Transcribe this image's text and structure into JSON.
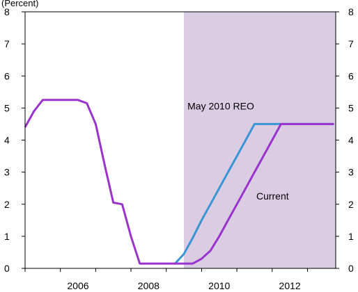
{
  "chart_data": {
    "type": "line",
    "title": "",
    "xlabel": "",
    "ylabel": "",
    "ylim": [
      0,
      8
    ],
    "xlim": [
      2005.0,
      2013.8
    ],
    "y_ticks": [
      0,
      1,
      2,
      3,
      4,
      5,
      6,
      7,
      8
    ],
    "x_tick_labels": [
      {
        "value": 2006,
        "label": "2006"
      },
      {
        "value": 2008,
        "label": "2008"
      },
      {
        "value": 2010,
        "label": "2010"
      },
      {
        "value": 2012,
        "label": "2012"
      }
    ],
    "grid": false,
    "shaded_region": {
      "x_start": 2009.5,
      "x_end": 2013.8,
      "color": "#d9cce3"
    },
    "top_left_label": "(Percent)",
    "series": [
      {
        "name": "May 2010 REO",
        "color": "#3b95d5",
        "x": [
          2009.25,
          2009.5,
          2009.75,
          2010.0,
          2010.25,
          2010.5,
          2010.75,
          2011.0,
          2011.25,
          2011.5,
          2011.75,
          2012.0,
          2012.25,
          2012.5,
          2012.75,
          2013.0,
          2013.25,
          2013.5,
          2013.75
        ],
        "values": [
          0.15,
          0.45,
          0.95,
          1.5,
          2.0,
          2.5,
          3.0,
          3.5,
          4.0,
          4.5,
          4.5,
          4.5,
          4.5,
          4.5,
          4.5,
          4.5,
          4.5,
          4.5,
          4.5
        ]
      },
      {
        "name": "Current",
        "color": "#9933cc",
        "x": [
          2005.0,
          2005.25,
          2005.5,
          2005.75,
          2006.0,
          2006.25,
          2006.5,
          2006.75,
          2007.0,
          2007.25,
          2007.5,
          2007.75,
          2008.0,
          2008.25,
          2008.5,
          2008.75,
          2009.0,
          2009.25,
          2009.5,
          2009.75,
          2010.0,
          2010.25,
          2010.5,
          2010.75,
          2011.0,
          2011.25,
          2011.5,
          2011.75,
          2012.0,
          2012.25,
          2012.5,
          2012.75,
          2013.0,
          2013.25,
          2013.5,
          2013.75
        ],
        "values": [
          4.4,
          4.9,
          5.25,
          5.25,
          5.25,
          5.25,
          5.25,
          5.15,
          4.5,
          3.25,
          2.05,
          2.0,
          1.0,
          0.15,
          0.15,
          0.15,
          0.15,
          0.15,
          0.15,
          0.15,
          0.3,
          0.55,
          1.0,
          1.5,
          2.0,
          2.5,
          3.0,
          3.5,
          4.0,
          4.5,
          4.5,
          4.5,
          4.5,
          4.5,
          4.5,
          4.5
        ]
      }
    ]
  }
}
